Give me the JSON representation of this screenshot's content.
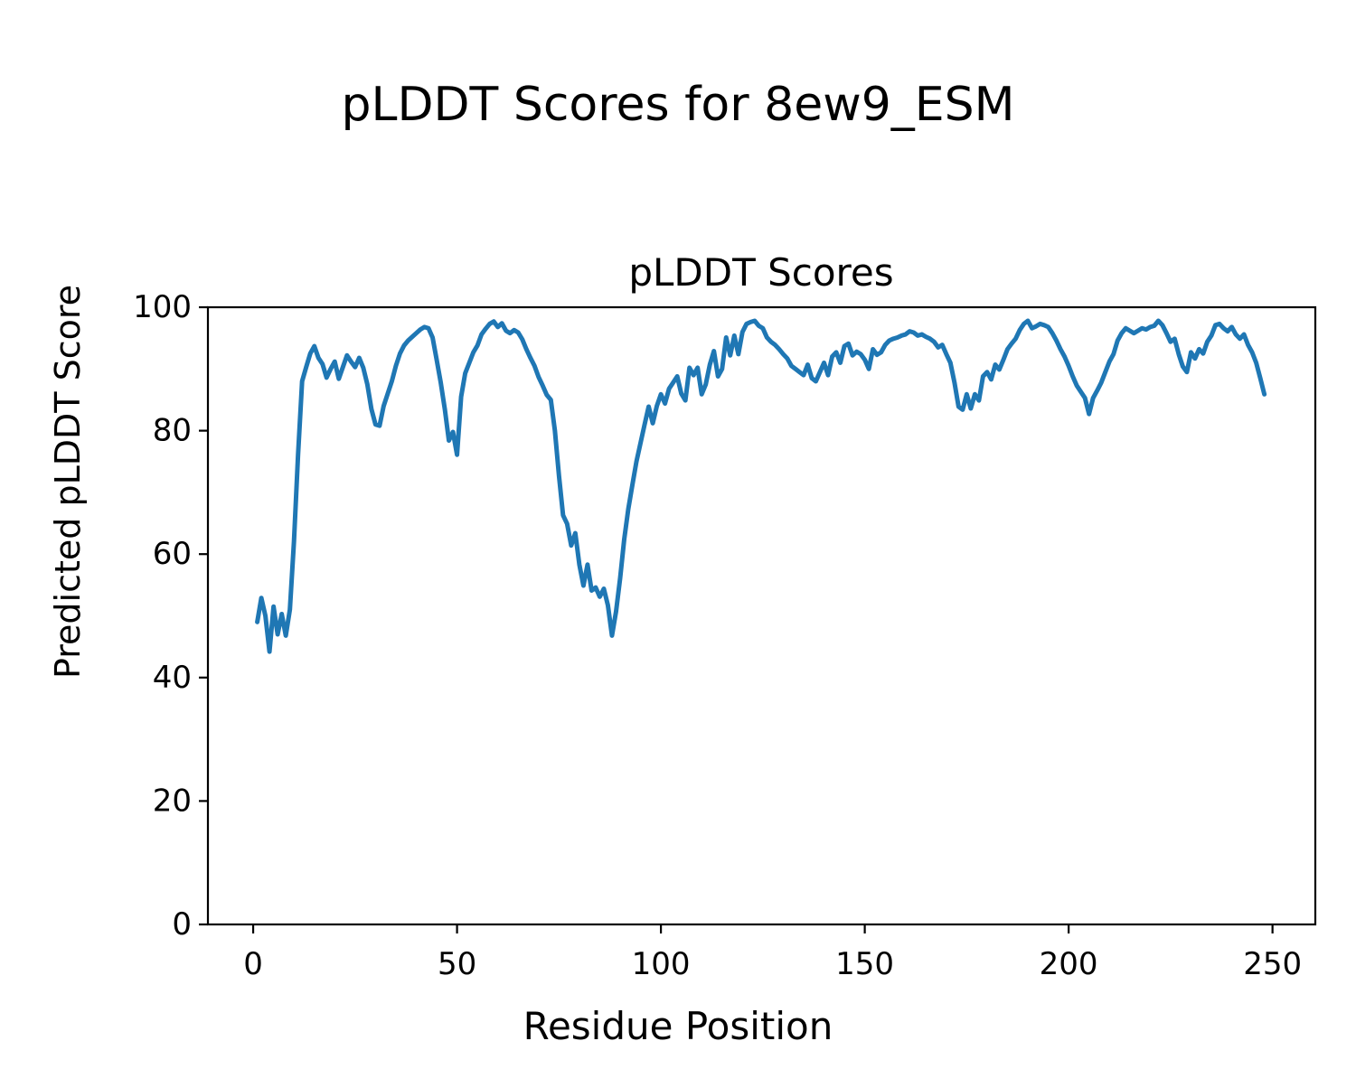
{
  "figure": {
    "suptitle": "pLDDT Scores for 8ew9_ESM",
    "background_color": "#ffffff",
    "text_color": "#000000"
  },
  "chart_data": {
    "type": "line",
    "title": "pLDDT Scores",
    "xlabel": "Residue Position",
    "ylabel": "Predicted pLDDT Score",
    "xlim": [
      -11.1,
      260.5
    ],
    "ylim": [
      0,
      100
    ],
    "xticks": [
      0,
      50,
      100,
      150,
      200,
      250
    ],
    "yticks": [
      0,
      20,
      40,
      60,
      80,
      100
    ],
    "grid": false,
    "legend": "none",
    "line_color": "#1f77b4",
    "line_width": 5,
    "series": [
      {
        "name": "pLDDT",
        "x_start": 1,
        "x_step": 1,
        "values": [
          49.0,
          52.9,
          50.0,
          44.2,
          51.5,
          47.0,
          50.3,
          46.8,
          51.0,
          62.0,
          76.0,
          88.0,
          90.3,
          92.5,
          93.7,
          91.8,
          90.8,
          88.6,
          90.0,
          91.2,
          88.4,
          90.3,
          92.2,
          91.2,
          90.3,
          91.8,
          90.2,
          87.5,
          83.5,
          81.0,
          80.8,
          84.0,
          86.0,
          88.0,
          90.5,
          92.5,
          93.8,
          94.6,
          95.2,
          95.8,
          96.4,
          96.8,
          96.6,
          95.1,
          91.5,
          87.8,
          83.5,
          78.4,
          79.8,
          76.1,
          85.5,
          89.3,
          91.0,
          92.7,
          93.8,
          95.6,
          96.5,
          97.3,
          97.7,
          96.8,
          97.4,
          96.2,
          95.8,
          96.3,
          95.9,
          94.8,
          93.2,
          91.8,
          90.5,
          88.7,
          87.3,
          85.8,
          85.0,
          80.0,
          72.7,
          66.3,
          64.9,
          61.4,
          63.4,
          58.3,
          54.9,
          58.3,
          54.1,
          54.6,
          53.1,
          54.4,
          51.7,
          46.8,
          50.7,
          56.1,
          62.4,
          67.3,
          71.2,
          75.0,
          78.0,
          81.0,
          83.9,
          81.2,
          84.0,
          85.9,
          84.4,
          86.8,
          87.8,
          88.8,
          86.0,
          84.9,
          90.2,
          89.0,
          90.2,
          85.9,
          87.5,
          90.7,
          92.9,
          88.8,
          90.0,
          95.1,
          92.2,
          95.4,
          92.4,
          96.0,
          97.3,
          97.6,
          97.8,
          97.0,
          96.6,
          95.1,
          94.4,
          93.9,
          93.2,
          92.4,
          91.7,
          90.5,
          90.0,
          89.5,
          89.0,
          90.7,
          88.5,
          88.0,
          89.5,
          91.0,
          89.0,
          92.0,
          92.7,
          91.0,
          93.7,
          94.1,
          92.2,
          92.8,
          92.4,
          91.5,
          90.0,
          93.2,
          92.3,
          92.7,
          93.9,
          94.6,
          94.9,
          95.1,
          95.4,
          95.6,
          96.1,
          95.9,
          95.4,
          95.6,
          95.2,
          94.9,
          94.4,
          93.5,
          93.9,
          92.4,
          91.0,
          87.8,
          83.9,
          83.4,
          85.9,
          83.6,
          85.9,
          84.9,
          88.8,
          89.5,
          88.3,
          90.7,
          89.9,
          91.5,
          93.2,
          94.1,
          94.9,
          96.3,
          97.3,
          97.8,
          96.6,
          96.9,
          97.3,
          97.1,
          96.8,
          95.8,
          94.6,
          93.2,
          92.0,
          90.5,
          88.8,
          87.3,
          86.3,
          85.3,
          82.7,
          85.3,
          86.5,
          87.8,
          89.5,
          91.2,
          92.4,
          94.6,
          95.8,
          96.6,
          96.2,
          95.8,
          96.2,
          96.6,
          96.4,
          96.8,
          97.0,
          97.8,
          97.1,
          95.8,
          94.4,
          94.9,
          92.4,
          90.4,
          89.5,
          92.7,
          91.7,
          93.2,
          92.5,
          94.4,
          95.4,
          97.1,
          97.3,
          96.6,
          96.1,
          96.8,
          95.6,
          94.9,
          95.6,
          93.9,
          92.7,
          91.0,
          88.5,
          85.9
        ]
      }
    ]
  }
}
